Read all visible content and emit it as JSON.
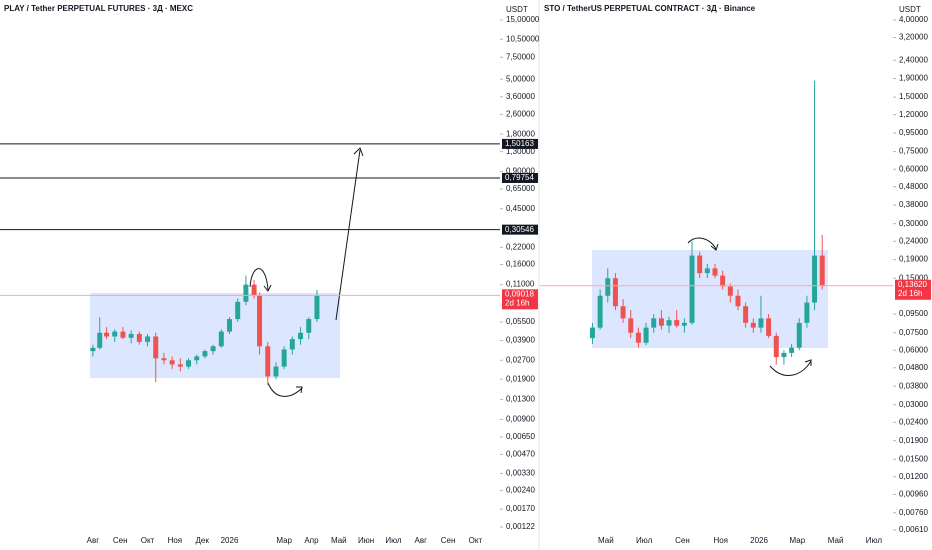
{
  "chart_data": [
    {
      "type": "candlestick",
      "title": "PLAY / Tether PERPETUAL FUTURES · 3Д · MEXC",
      "y_unit_label": "USDT",
      "log_scale": true,
      "up_color": "#26a69a",
      "down_color": "#ef5350",
      "categories": [
        "Авг",
        "Сен",
        "Окт",
        "Ноя",
        "Дек",
        "2026",
        null,
        "Мар",
        "Апр",
        "Май",
        "Июн",
        "Июл",
        "Авг",
        "Сен",
        "Окт"
      ],
      "xlim": [
        -3.4,
        14.9
      ],
      "ylim": [
        0.00122,
        15
      ],
      "yticks": [
        {
          "value": 15,
          "label": "15,00000"
        },
        {
          "value": 10.5,
          "label": "10,50000"
        },
        {
          "value": 7.5,
          "label": "7,50000"
        },
        {
          "value": 5,
          "label": "5,00000"
        },
        {
          "value": 3.6,
          "label": "3,60000"
        },
        {
          "value": 2.6,
          "label": "2,60000"
        },
        {
          "value": 1.8,
          "label": "1,80000"
        },
        {
          "value": 1.3,
          "label": "1,30000"
        },
        {
          "value": 0.9,
          "label": "0,90000"
        },
        {
          "value": 0.65,
          "label": "0,65000"
        },
        {
          "value": 0.45,
          "label": "0,45000"
        },
        {
          "value": 0.22,
          "label": "0,22000"
        },
        {
          "value": 0.16,
          "label": "0,16000"
        },
        {
          "value": 0.11,
          "label": "0,11000"
        },
        {
          "value": 0.055,
          "label": "0,05500"
        },
        {
          "value": 0.039,
          "label": "0,03900"
        },
        {
          "value": 0.027,
          "label": "0,02700"
        },
        {
          "value": 0.019,
          "label": "0,01900"
        },
        {
          "value": 0.013,
          "label": "0,01300"
        },
        {
          "value": 0.009,
          "label": "0,00900"
        },
        {
          "value": 0.0065,
          "label": "0,00650"
        },
        {
          "value": 0.0047,
          "label": "0,00470"
        },
        {
          "value": 0.0033,
          "label": "0,00330"
        },
        {
          "value": 0.0024,
          "label": "0,00240"
        },
        {
          "value": 0.0017,
          "label": "0,00170"
        },
        {
          "value": 0.00122,
          "label": "0,00122"
        }
      ],
      "levels": [
        {
          "value": 1.50163,
          "label": "1,50163"
        },
        {
          "value": 0.79754,
          "label": "0,79754"
        },
        {
          "value": 0.30546,
          "label": "0,30546"
        }
      ],
      "last_price": {
        "value": 0.09018,
        "label": "0,09018"
      },
      "countdown": "2d 16h",
      "candles": {
        "x": [
          0,
          0.25,
          0.5,
          0.8,
          1.1,
          1.4,
          1.7,
          2.0,
          2.3,
          2.6,
          2.9,
          3.2,
          3.5,
          3.8,
          4.1,
          4.4,
          4.7,
          5.0,
          5.3,
          5.6,
          5.9,
          6.1,
          6.4,
          6.7,
          7.0,
          7.3,
          7.6,
          7.9,
          8.2
        ],
        "open": [
          0.032,
          0.034,
          0.045,
          0.042,
          0.046,
          0.041,
          0.044,
          0.038,
          0.042,
          0.028,
          0.027,
          0.025,
          0.024,
          0.027,
          0.029,
          0.032,
          0.035,
          0.046,
          0.058,
          0.08,
          0.11,
          0.09,
          0.035,
          0.02,
          0.024,
          0.033,
          0.04,
          0.045,
          0.058
        ],
        "high": [
          0.036,
          0.06,
          0.05,
          0.048,
          0.05,
          0.047,
          0.046,
          0.044,
          0.045,
          0.031,
          0.029,
          0.028,
          0.028,
          0.03,
          0.033,
          0.036,
          0.048,
          0.06,
          0.085,
          0.13,
          0.12,
          0.095,
          0.038,
          0.026,
          0.035,
          0.042,
          0.05,
          0.06,
          0.1
        ],
        "low": [
          0.029,
          0.033,
          0.04,
          0.038,
          0.04,
          0.037,
          0.036,
          0.035,
          0.018,
          0.025,
          0.023,
          0.022,
          0.023,
          0.025,
          0.028,
          0.03,
          0.034,
          0.044,
          0.055,
          0.075,
          0.085,
          0.03,
          0.017,
          0.019,
          0.023,
          0.03,
          0.036,
          0.04,
          0.055
        ],
        "close": [
          0.034,
          0.045,
          0.042,
          0.046,
          0.041,
          0.044,
          0.038,
          0.042,
          0.028,
          0.027,
          0.025,
          0.024,
          0.027,
          0.029,
          0.032,
          0.035,
          0.046,
          0.058,
          0.08,
          0.11,
          0.09,
          0.035,
          0.02,
          0.024,
          0.033,
          0.04,
          0.045,
          0.058,
          0.09018
        ]
      }
    },
    {
      "type": "candlestick",
      "title": "STO / TetherUS PERPETUAL CONTRACT · 3Д · Binance",
      "y_unit_label": "USDT",
      "log_scale": true,
      "up_color": "#26a69a",
      "down_color": "#ef5350",
      "categories": [
        "Май",
        null,
        "Июл",
        null,
        "Сен",
        null,
        "Ноя",
        null,
        "2026",
        null,
        "Мар",
        null,
        "Май",
        null,
        "Июл"
      ],
      "xlim": [
        -3.44,
        14.84
      ],
      "ylim": [
        0.0061,
        4
      ],
      "yticks": [
        {
          "value": 4,
          "label": "4,00000"
        },
        {
          "value": 3.2,
          "label": "3,20000"
        },
        {
          "value": 2.4,
          "label": "2,40000"
        },
        {
          "value": 1.9,
          "label": "1,90000"
        },
        {
          "value": 1.5,
          "label": "1,50000"
        },
        {
          "value": 1.2,
          "label": "1,20000"
        },
        {
          "value": 0.95,
          "label": "0,95000"
        },
        {
          "value": 0.75,
          "label": "0,75000"
        },
        {
          "value": 0.6,
          "label": "0,60000"
        },
        {
          "value": 0.48,
          "label": "0,48000"
        },
        {
          "value": 0.38,
          "label": "0,38000"
        },
        {
          "value": 0.3,
          "label": "0,30000"
        },
        {
          "value": 0.24,
          "label": "0,24000"
        },
        {
          "value": 0.19,
          "label": "0,19000"
        },
        {
          "value": 0.15,
          "label": "0,15000"
        },
        {
          "value": 0.095,
          "label": "0,09500"
        },
        {
          "value": 0.075,
          "label": "0,07500"
        },
        {
          "value": 0.06,
          "label": "0,06000"
        },
        {
          "value": 0.048,
          "label": "0,04800"
        },
        {
          "value": 0.038,
          "label": "0,03800"
        },
        {
          "value": 0.03,
          "label": "0,03000"
        },
        {
          "value": 0.024,
          "label": "0,02400"
        },
        {
          "value": 0.019,
          "label": "0,01900"
        },
        {
          "value": 0.015,
          "label": "0,01500"
        },
        {
          "value": 0.012,
          "label": "0,01200"
        },
        {
          "value": 0.0096,
          "label": "0,00960"
        },
        {
          "value": 0.0076,
          "label": "0,00760"
        },
        {
          "value": 0.0061,
          "label": "0,00610"
        }
      ],
      "levels": [],
      "last_price": {
        "value": 0.1362,
        "label": "0,13620"
      },
      "countdown": "2d 16h",
      "candles": {
        "x": [
          -0.7,
          -0.3,
          0.1,
          0.5,
          0.9,
          1.3,
          1.7,
          2.1,
          2.5,
          2.9,
          3.3,
          3.7,
          4.1,
          4.5,
          4.9,
          5.3,
          5.7,
          6.1,
          6.5,
          6.9,
          7.3,
          7.7,
          8.1,
          8.5,
          8.9,
          9.3,
          9.7,
          10.1,
          10.5,
          10.9,
          11.3
        ],
        "open": [
          0.07,
          0.08,
          0.12,
          0.15,
          0.105,
          0.09,
          0.075,
          0.066,
          0.08,
          0.09,
          0.082,
          0.088,
          0.082,
          0.085,
          0.2,
          0.16,
          0.17,
          0.155,
          0.135,
          0.12,
          0.105,
          0.085,
          0.08,
          0.09,
          0.072,
          0.055,
          0.058,
          0.062,
          0.085,
          0.11,
          0.2
        ],
        "high": [
          0.085,
          0.13,
          0.17,
          0.16,
          0.115,
          0.1,
          0.08,
          0.085,
          0.095,
          0.1,
          0.092,
          0.1,
          0.09,
          0.24,
          0.21,
          0.18,
          0.18,
          0.165,
          0.14,
          0.13,
          0.11,
          0.09,
          0.12,
          0.095,
          0.075,
          0.06,
          0.065,
          0.09,
          0.12,
          1.85,
          0.26
        ],
        "low": [
          0.065,
          0.078,
          0.11,
          0.1,
          0.085,
          0.07,
          0.062,
          0.064,
          0.075,
          0.078,
          0.075,
          0.08,
          0.075,
          0.083,
          0.15,
          0.15,
          0.15,
          0.13,
          0.11,
          0.1,
          0.08,
          0.075,
          0.075,
          0.07,
          0.05,
          0.05,
          0.055,
          0.06,
          0.08,
          0.1,
          0.13
        ],
        "close": [
          0.08,
          0.12,
          0.15,
          0.105,
          0.09,
          0.075,
          0.066,
          0.08,
          0.09,
          0.082,
          0.088,
          0.082,
          0.085,
          0.2,
          0.16,
          0.17,
          0.155,
          0.135,
          0.12,
          0.105,
          0.085,
          0.08,
          0.09,
          0.072,
          0.055,
          0.058,
          0.062,
          0.085,
          0.11,
          0.2,
          0.1362
        ]
      }
    }
  ]
}
